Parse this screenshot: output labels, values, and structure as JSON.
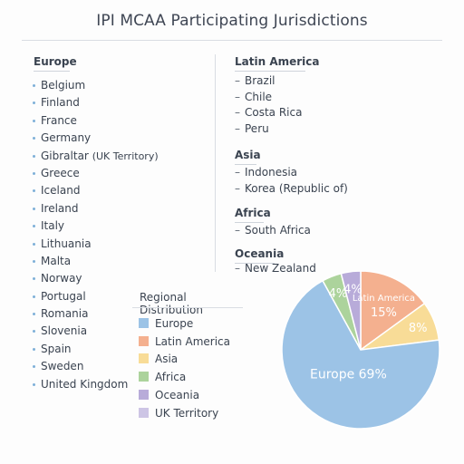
{
  "title": "IPI MCAA Participating Jurisdictions",
  "sections": {
    "europe": {
      "heading": "Europe",
      "items": [
        "Belgium",
        "Finland",
        "France",
        "Germany",
        "Gibraltar (UK Territory)",
        "Greece",
        "Iceland",
        "Ireland",
        "Italy",
        "Lithuania",
        "Malta",
        "Norway",
        "Portugal",
        "Romania",
        "Slovenia",
        "Spain",
        "Sweden",
        "United Kingdom"
      ]
    },
    "latin_america": {
      "heading": "Latin America",
      "items": [
        "Brazil",
        "Chile",
        "Costa Rica",
        "Peru"
      ]
    },
    "asia": {
      "heading": "Asia",
      "items": [
        "Indonesia",
        "Korea (Republic of)"
      ]
    },
    "africa": {
      "heading": "Africa",
      "items": [
        "South Africa"
      ]
    },
    "oceania": {
      "heading": "Oceania",
      "items": [
        "New Zealand"
      ]
    }
  },
  "legend": {
    "title": "Regional Distribution",
    "items": [
      {
        "label": "Europe",
        "color": "#9cc3e6"
      },
      {
        "label": "Latin America",
        "color": "#f4b08f"
      },
      {
        "label": "Asia",
        "color": "#f8dc97"
      },
      {
        "label": "Africa",
        "color": "#acd39c"
      },
      {
        "label": "Oceania",
        "color": "#b8abd9"
      },
      {
        "label": "UK Territory",
        "color": "#cdc5e5"
      }
    ]
  },
  "chart_data": {
    "type": "pie",
    "title": "Regional Distribution",
    "slices": [
      {
        "name": "Latin America",
        "value": 15,
        "label": "Latin America",
        "pct_label": "15%",
        "color": "#f4b08f"
      },
      {
        "name": "Asia",
        "value": 8,
        "label": "",
        "pct_label": "8%",
        "color": "#f8dc97"
      },
      {
        "name": "Europe",
        "value": 69,
        "label": "Europe",
        "pct_label": "69%",
        "color": "#9cc3e6"
      },
      {
        "name": "Africa",
        "value": 4,
        "label": "",
        "pct_label": "4%",
        "color": "#acd39c"
      },
      {
        "name": "Oceania",
        "value": 4,
        "label": "",
        "pct_label": "4%",
        "color": "#b8abd9"
      }
    ],
    "legend_position": "left"
  }
}
